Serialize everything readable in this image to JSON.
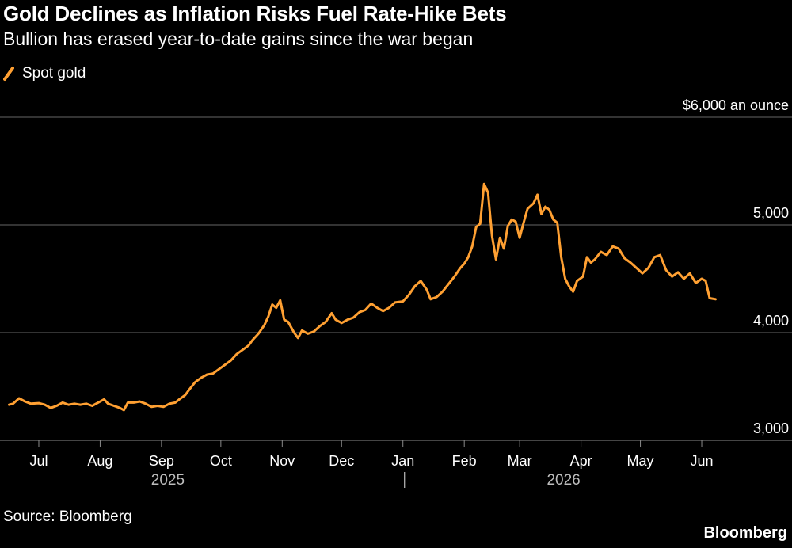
{
  "header": {
    "title": "Gold Declines as Inflation Risks Fuel Rate-Hike Bets",
    "subtitle": "Bullion has erased year-to-date gains since the war began"
  },
  "footer": {
    "source": "Source: Bloomberg",
    "brand": "Bloomberg"
  },
  "colors": {
    "background": "#000000",
    "line": "#ffa032",
    "grid": "#666666",
    "text": "#ffffff",
    "year_text": "#bdbdbd"
  },
  "chart_data": {
    "type": "line",
    "title": "Gold Declines as Inflation Risks Fuel Rate-Hike Bets",
    "subtitle": "Bullion has erased year-to-date gains since the war began",
    "unit_label": "$6,000 an ounce",
    "xlabel": "",
    "ylabel": "",
    "ylim": [
      3000,
      6000
    ],
    "xlim": [
      "2025-06-15",
      "2026-06-15"
    ],
    "y_ticks": [
      {
        "value": 3000,
        "label": "3,000"
      },
      {
        "value": 4000,
        "label": "4,000"
      },
      {
        "value": 5000,
        "label": "5,000"
      },
      {
        "value": 6000,
        "label": "$6,000 an ounce"
      }
    ],
    "x_ticks": [
      {
        "date": "2025-07-01",
        "label": "Jul"
      },
      {
        "date": "2025-08-01",
        "label": "Aug"
      },
      {
        "date": "2025-09-01",
        "label": "Sep"
      },
      {
        "date": "2025-10-01",
        "label": "Oct"
      },
      {
        "date": "2025-11-01",
        "label": "Nov"
      },
      {
        "date": "2025-12-01",
        "label": "Dec"
      },
      {
        "date": "2026-01-01",
        "label": "Jan"
      },
      {
        "date": "2026-02-01",
        "label": "Feb"
      },
      {
        "date": "2026-03-01",
        "label": "Mar"
      },
      {
        "date": "2026-04-01",
        "label": "Apr"
      },
      {
        "date": "2026-05-01",
        "label": "May"
      },
      {
        "date": "2026-06-01",
        "label": "Jun"
      }
    ],
    "year_labels": [
      {
        "date": "2025-09-01",
        "label": "2025"
      },
      {
        "date": "2026-03-20",
        "label": "2026"
      }
    ],
    "year_divider": "2026-01-01",
    "grid": true,
    "legend": "top-left",
    "series": [
      {
        "name": "Spot gold",
        "color": "#ffa032",
        "points": [
          [
            "2025-06-16",
            3330
          ],
          [
            "2025-06-18",
            3340
          ],
          [
            "2025-06-21",
            3390
          ],
          [
            "2025-06-24",
            3360
          ],
          [
            "2025-06-27",
            3340
          ],
          [
            "2025-07-01",
            3345
          ],
          [
            "2025-07-04",
            3330
          ],
          [
            "2025-07-07",
            3300
          ],
          [
            "2025-07-10",
            3320
          ],
          [
            "2025-07-13",
            3350
          ],
          [
            "2025-07-16",
            3330
          ],
          [
            "2025-07-19",
            3340
          ],
          [
            "2025-07-22",
            3330
          ],
          [
            "2025-07-25",
            3340
          ],
          [
            "2025-07-28",
            3320
          ],
          [
            "2025-07-31",
            3350
          ],
          [
            "2025-08-03",
            3380
          ],
          [
            "2025-08-05",
            3340
          ],
          [
            "2025-08-08",
            3320
          ],
          [
            "2025-08-11",
            3300
          ],
          [
            "2025-08-13",
            3280
          ],
          [
            "2025-08-15",
            3350
          ],
          [
            "2025-08-18",
            3350
          ],
          [
            "2025-08-21",
            3360
          ],
          [
            "2025-08-24",
            3340
          ],
          [
            "2025-08-27",
            3310
          ],
          [
            "2025-08-30",
            3320
          ],
          [
            "2025-09-02",
            3310
          ],
          [
            "2025-09-05",
            3340
          ],
          [
            "2025-09-08",
            3350
          ],
          [
            "2025-09-10",
            3380
          ],
          [
            "2025-09-13",
            3420
          ],
          [
            "2025-09-15",
            3470
          ],
          [
            "2025-09-18",
            3540
          ],
          [
            "2025-09-21",
            3580
          ],
          [
            "2025-09-24",
            3610
          ],
          [
            "2025-09-27",
            3620
          ],
          [
            "2025-09-30",
            3660
          ],
          [
            "2025-10-03",
            3700
          ],
          [
            "2025-10-06",
            3740
          ],
          [
            "2025-10-09",
            3800
          ],
          [
            "2025-10-12",
            3840
          ],
          [
            "2025-10-15",
            3880
          ],
          [
            "2025-10-17",
            3930
          ],
          [
            "2025-10-20",
            3990
          ],
          [
            "2025-10-23",
            4070
          ],
          [
            "2025-10-25",
            4150
          ],
          [
            "2025-10-27",
            4260
          ],
          [
            "2025-10-29",
            4230
          ],
          [
            "2025-10-31",
            4300
          ],
          [
            "2025-11-02",
            4120
          ],
          [
            "2025-11-04",
            4100
          ],
          [
            "2025-11-07",
            4000
          ],
          [
            "2025-11-09",
            3950
          ],
          [
            "2025-11-11",
            4020
          ],
          [
            "2025-11-14",
            3990
          ],
          [
            "2025-11-17",
            4010
          ],
          [
            "2025-11-20",
            4060
          ],
          [
            "2025-11-23",
            4100
          ],
          [
            "2025-11-26",
            4180
          ],
          [
            "2025-11-28",
            4120
          ],
          [
            "2025-12-01",
            4090
          ],
          [
            "2025-12-04",
            4120
          ],
          [
            "2025-12-07",
            4140
          ],
          [
            "2025-12-10",
            4190
          ],
          [
            "2025-12-13",
            4210
          ],
          [
            "2025-12-16",
            4270
          ],
          [
            "2025-12-19",
            4230
          ],
          [
            "2025-12-22",
            4200
          ],
          [
            "2025-12-25",
            4230
          ],
          [
            "2025-12-28",
            4280
          ],
          [
            "2026-01-01",
            4290
          ],
          [
            "2026-01-04",
            4350
          ],
          [
            "2026-01-07",
            4430
          ],
          [
            "2026-01-10",
            4480
          ],
          [
            "2026-01-13",
            4400
          ],
          [
            "2026-01-15",
            4310
          ],
          [
            "2026-01-18",
            4330
          ],
          [
            "2026-01-21",
            4380
          ],
          [
            "2026-01-24",
            4450
          ],
          [
            "2026-01-27",
            4520
          ],
          [
            "2026-01-30",
            4600
          ],
          [
            "2026-02-01",
            4640
          ],
          [
            "2026-02-03",
            4700
          ],
          [
            "2026-02-05",
            4800
          ],
          [
            "2026-02-07",
            4980
          ],
          [
            "2026-02-09",
            5010
          ],
          [
            "2026-02-11",
            5380
          ],
          [
            "2026-02-13",
            5300
          ],
          [
            "2026-02-15",
            4900
          ],
          [
            "2026-02-17",
            4680
          ],
          [
            "2026-02-19",
            4880
          ],
          [
            "2026-02-21",
            4780
          ],
          [
            "2026-02-23",
            4990
          ],
          [
            "2026-02-25",
            5050
          ],
          [
            "2026-02-27",
            5030
          ],
          [
            "2026-03-01",
            4880
          ],
          [
            "2026-03-03",
            5020
          ],
          [
            "2026-03-05",
            5150
          ],
          [
            "2026-03-08",
            5200
          ],
          [
            "2026-03-10",
            5280
          ],
          [
            "2026-03-12",
            5100
          ],
          [
            "2026-03-14",
            5170
          ],
          [
            "2026-03-16",
            5140
          ],
          [
            "2026-03-18",
            5050
          ],
          [
            "2026-03-20",
            5020
          ],
          [
            "2026-03-22",
            4700
          ],
          [
            "2026-03-24",
            4500
          ],
          [
            "2026-03-26",
            4430
          ],
          [
            "2026-03-28",
            4380
          ],
          [
            "2026-03-30",
            4480
          ],
          [
            "2026-04-02",
            4520
          ],
          [
            "2026-04-04",
            4700
          ],
          [
            "2026-04-06",
            4650
          ],
          [
            "2026-04-08",
            4680
          ],
          [
            "2026-04-11",
            4750
          ],
          [
            "2026-04-14",
            4720
          ],
          [
            "2026-04-17",
            4800
          ],
          [
            "2026-04-20",
            4780
          ],
          [
            "2026-04-23",
            4690
          ],
          [
            "2026-04-26",
            4650
          ],
          [
            "2026-04-29",
            4600
          ],
          [
            "2026-05-02",
            4550
          ],
          [
            "2026-05-05",
            4600
          ],
          [
            "2026-05-08",
            4700
          ],
          [
            "2026-05-11",
            4720
          ],
          [
            "2026-05-14",
            4580
          ],
          [
            "2026-05-17",
            4520
          ],
          [
            "2026-05-20",
            4560
          ],
          [
            "2026-05-23",
            4500
          ],
          [
            "2026-05-26",
            4550
          ],
          [
            "2026-05-29",
            4460
          ],
          [
            "2026-06-01",
            4500
          ],
          [
            "2026-06-03",
            4480
          ],
          [
            "2026-06-05",
            4320
          ],
          [
            "2026-06-08",
            4310
          ]
        ]
      }
    ]
  }
}
